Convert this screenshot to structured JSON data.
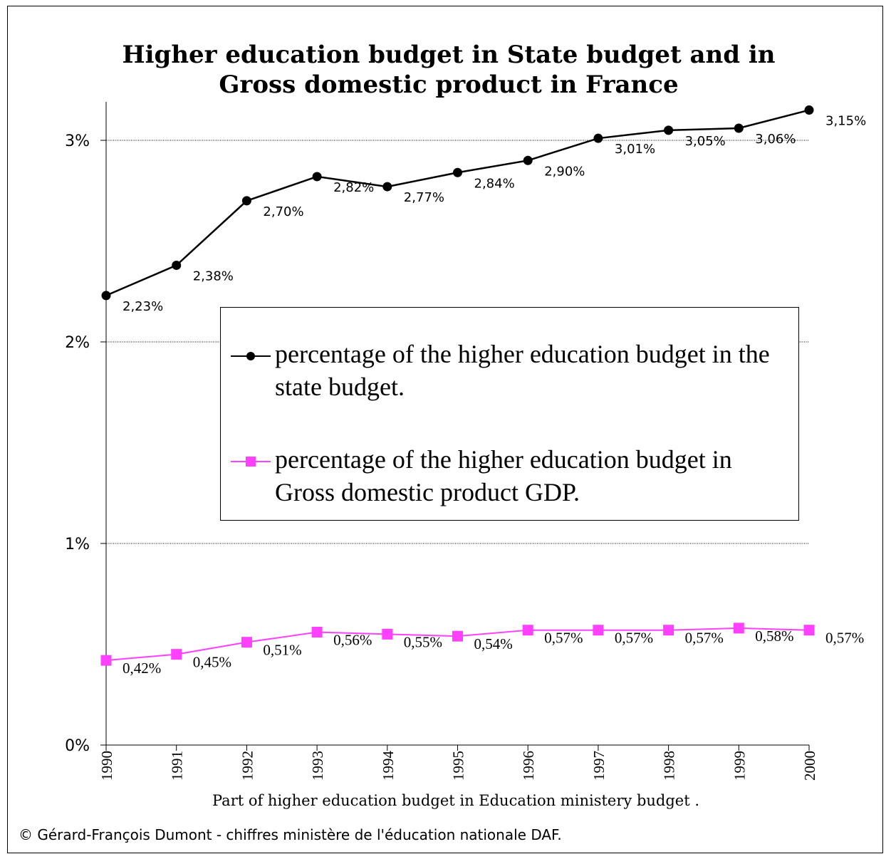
{
  "chart_data": {
    "type": "line",
    "title": "Higher education budget in State budget and in Gross domestic product in France",
    "xlabel": "Part of higher education budget in Education ministery budget .",
    "ylabel": "",
    "categories": [
      "1990",
      "1991",
      "1992",
      "1993",
      "1994",
      "1995",
      "1996",
      "1997",
      "1998",
      "1999",
      "2000"
    ],
    "ylim": [
      0,
      3.2
    ],
    "yticks": [
      {
        "value": 0,
        "label": "0%"
      },
      {
        "value": 1,
        "label": "1%"
      },
      {
        "value": 2,
        "label": "2%"
      },
      {
        "value": 3,
        "label": "3%"
      }
    ],
    "grid": true,
    "legend_position": "center",
    "series": [
      {
        "name": "percentage of the higher education budget in the state budget.",
        "color": "#000000",
        "marker": "circle",
        "values": [
          2.23,
          2.38,
          2.7,
          2.82,
          2.77,
          2.84,
          2.9,
          3.01,
          3.05,
          3.06,
          3.15
        ],
        "labels": [
          "2,23%",
          "2,38%",
          "2,70%",
          "2,82%",
          "2,77%",
          "2,84%",
          "2,90%",
          "3,01%",
          "3,05%",
          "3,06%",
          "3,15%"
        ]
      },
      {
        "name": "percentage of the higher education budget in Gross domestic product GDP.",
        "color": "#ff40ff",
        "marker": "square",
        "values": [
          0.42,
          0.45,
          0.51,
          0.56,
          0.55,
          0.54,
          0.57,
          0.57,
          0.57,
          0.58,
          0.57
        ],
        "labels": [
          "0,42%",
          "0,45%",
          "0,51%",
          "0,56%",
          "0,55%",
          "0,54%",
          "0,57%",
          "0,57%",
          "0,57%",
          "0,58%",
          "0,57%"
        ]
      }
    ]
  },
  "footer": {
    "credit": "© Gérard-François Dumont - chiffres ministère de l'éducation nationale DAF."
  }
}
